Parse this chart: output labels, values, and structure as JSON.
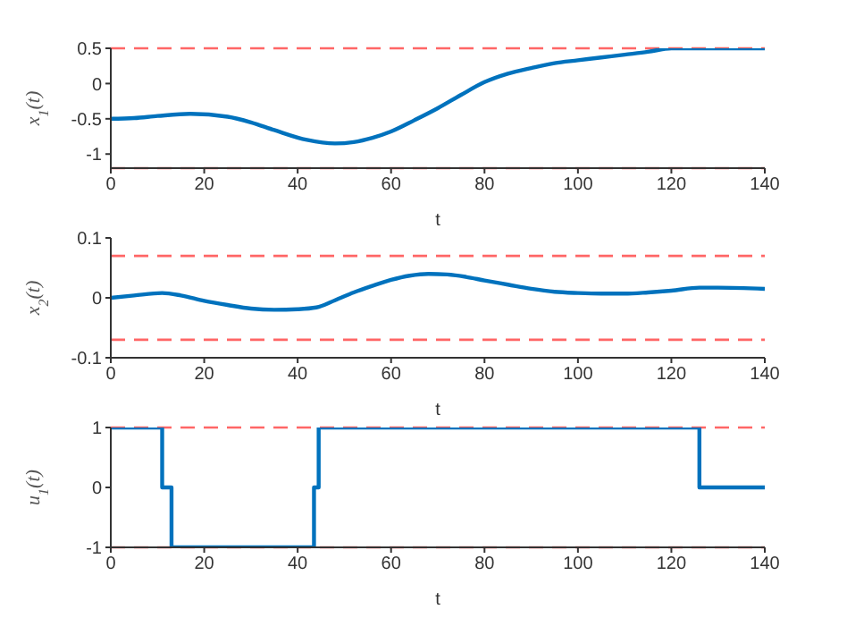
{
  "chart_data": [
    {
      "type": "line",
      "xlabel": "t",
      "ylabel": "x$_{1}$(t)",
      "xlim": [
        0,
        140
      ],
      "xticks": [
        0,
        20,
        40,
        60,
        80,
        100,
        120,
        140
      ],
      "ylim": [
        -1.2,
        0.5
      ],
      "yticks": [
        -1,
        -0.5,
        0,
        0.5
      ],
      "series": [
        {
          "color": "#0072bd",
          "x": [
            0,
            5,
            10,
            17,
            25,
            30,
            35,
            42,
            48,
            52,
            56,
            60,
            65,
            70,
            75,
            80,
            85,
            90,
            95,
            100,
            105,
            110,
            115,
            120,
            130,
            140
          ],
          "values": [
            -0.5,
            -0.49,
            -0.46,
            -0.43,
            -0.47,
            -0.55,
            -0.66,
            -0.8,
            -0.85,
            -0.83,
            -0.77,
            -0.68,
            -0.52,
            -0.35,
            -0.16,
            0.02,
            0.14,
            0.22,
            0.29,
            0.33,
            0.37,
            0.41,
            0.45,
            0.5,
            0.5,
            0.5
          ]
        }
      ],
      "ref_lines": [
        {
          "axis": "y",
          "value": 0.5,
          "color": "#ff6666",
          "line_style": "dashed"
        },
        {
          "axis": "y",
          "value": -1.2,
          "color": "#ff6666",
          "line_style": "dashed"
        }
      ]
    },
    {
      "type": "line",
      "xlabel": "t",
      "ylabel": "x$_{2}$(t)",
      "xlim": [
        0,
        140
      ],
      "xticks": [
        0,
        20,
        40,
        60,
        80,
        100,
        120,
        140
      ],
      "ylim": [
        -0.1,
        0.1
      ],
      "yticks": [
        -0.1,
        0,
        0.1
      ],
      "series": [
        {
          "color": "#0072bd",
          "x": [
            0,
            5,
            11,
            15,
            20,
            25,
            30,
            35,
            40,
            44,
            48,
            52,
            56,
            60,
            64,
            68,
            72,
            76,
            80,
            85,
            90,
            95,
            100,
            105,
            110,
            115,
            120,
            126,
            130,
            140
          ],
          "values": [
            0,
            0.004,
            0.008,
            0.004,
            -0.005,
            -0.012,
            -0.018,
            -0.02,
            -0.019,
            -0.016,
            -0.004,
            0.009,
            0.02,
            0.03,
            0.037,
            0.04,
            0.039,
            0.035,
            0.029,
            0.022,
            0.015,
            0.01,
            0.008,
            0.007,
            0.007,
            0.009,
            0.012,
            0.017,
            0.017,
            0.015
          ]
        }
      ],
      "ref_lines": [
        {
          "axis": "y",
          "value": 0.07,
          "color": "#ff6666",
          "line_style": "dashed"
        },
        {
          "axis": "y",
          "value": -0.07,
          "color": "#ff6666",
          "line_style": "dashed"
        }
      ]
    },
    {
      "type": "step",
      "xlabel": "t",
      "ylabel": "u$_{1}$(t)",
      "xlim": [
        0,
        140
      ],
      "xticks": [
        0,
        20,
        40,
        60,
        80,
        100,
        120,
        140
      ],
      "ylim": [
        -1,
        1
      ],
      "yticks": [
        -1,
        0,
        1
      ],
      "series": [
        {
          "color": "#0072bd",
          "x": [
            0,
            11,
            13,
            43.5,
            44.5,
            126,
            140
          ],
          "values": [
            1,
            0,
            -1,
            0,
            1,
            0,
            0
          ]
        }
      ],
      "ref_lines": [
        {
          "axis": "y",
          "value": 1,
          "color": "#ff6666",
          "line_style": "dashed"
        },
        {
          "axis": "y",
          "value": -1,
          "color": "#ff6666",
          "line_style": "dashed"
        }
      ]
    }
  ]
}
